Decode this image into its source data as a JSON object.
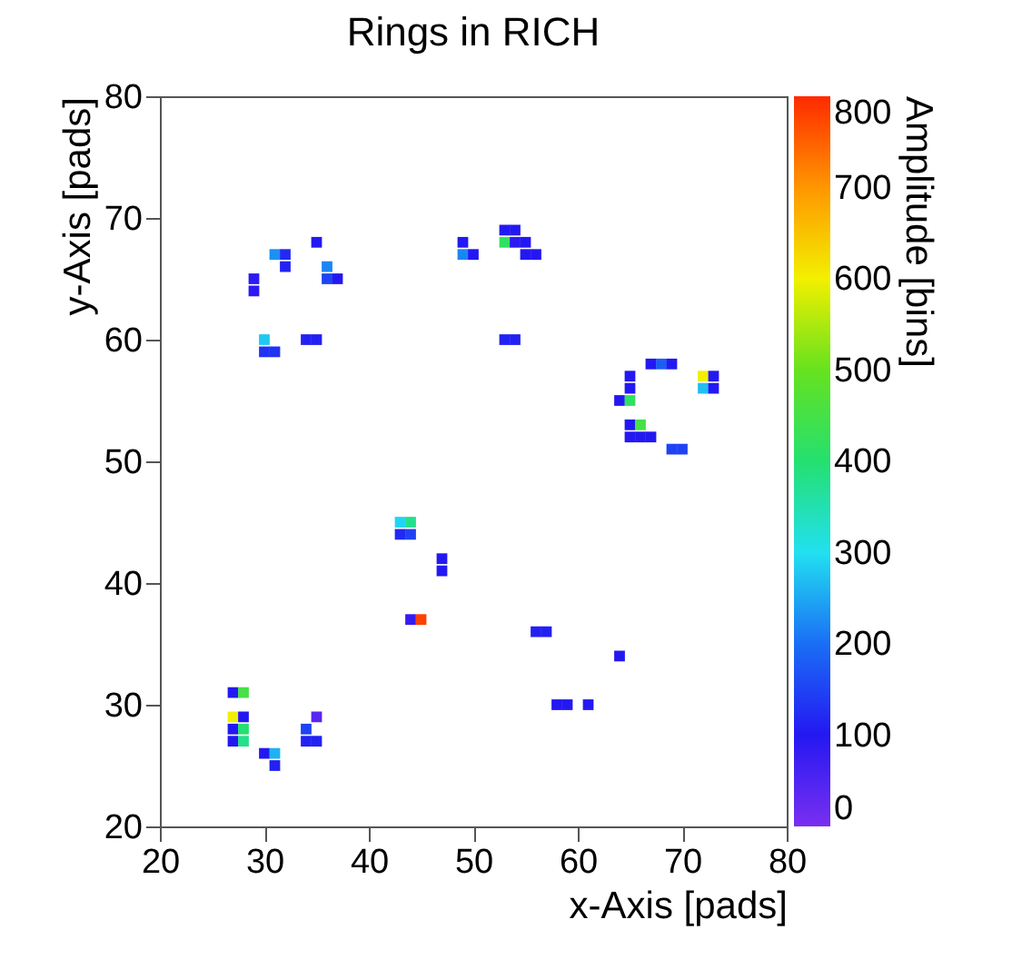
{
  "chart_data": {
    "type": "scatter",
    "title": "Rings in RICH",
    "xlabel": "x-Axis [pads]",
    "ylabel": "y-Axis [pads]",
    "clabel": "Amplitude [bins]",
    "marker": "square",
    "grid": false,
    "legend": false,
    "xlim": [
      20,
      80
    ],
    "ylim": [
      20,
      80
    ],
    "xticks": [
      20,
      30,
      40,
      50,
      60,
      70,
      80
    ],
    "yticks": [
      20,
      30,
      40,
      50,
      60,
      70,
      80
    ],
    "clim": [
      0,
      800
    ],
    "cticks": [
      0,
      100,
      200,
      300,
      400,
      500,
      600,
      700,
      800
    ],
    "x": [
      35,
      31,
      32,
      32,
      29,
      29,
      36,
      36,
      37,
      30,
      30,
      31,
      34,
      35,
      49,
      49,
      50,
      53,
      54,
      53,
      54,
      55,
      55,
      56,
      53,
      54,
      67,
      68,
      69,
      65,
      65,
      64,
      65,
      72,
      73,
      72,
      73,
      65,
      66,
      65,
      66,
      67,
      69,
      70,
      43,
      44,
      43,
      44,
      47,
      47,
      44,
      45,
      56,
      57,
      64,
      58,
      59,
      61,
      27,
      28,
      27,
      27,
      27,
      28,
      28,
      28,
      30,
      31,
      31,
      35,
      34,
      34,
      35
    ],
    "values": [
      68,
      67,
      67,
      66,
      65,
      64,
      66,
      65,
      65,
      60,
      59,
      59,
      60,
      60,
      68,
      67,
      67,
      69,
      69,
      68,
      68,
      68,
      67,
      67,
      60,
      60,
      58,
      58,
      58,
      57,
      56,
      55,
      55,
      57,
      57,
      56,
      56,
      53,
      53,
      52,
      52,
      52,
      51,
      51,
      45,
      45,
      44,
      44,
      42,
      41,
      37,
      37,
      36,
      36,
      34,
      30,
      30,
      30,
      31,
      31,
      29,
      28,
      27,
      29,
      28,
      27,
      26,
      26,
      25,
      29,
      28,
      27,
      27
    ],
    "cvalues": [
      100,
      230,
      120,
      110,
      90,
      90,
      220,
      150,
      100,
      280,
      130,
      130,
      110,
      110,
      100,
      220,
      100,
      100,
      100,
      420,
      90,
      100,
      100,
      100,
      110,
      110,
      100,
      180,
      100,
      100,
      100,
      100,
      420,
      600,
      100,
      270,
      100,
      100,
      450,
      100,
      100,
      100,
      150,
      150,
      290,
      380,
      120,
      150,
      100,
      100,
      80,
      780,
      110,
      110,
      100,
      100,
      100,
      100,
      100,
      450,
      600,
      100,
      100,
      100,
      400,
      380,
      100,
      260,
      110,
      40,
      150,
      110,
      110
    ]
  }
}
